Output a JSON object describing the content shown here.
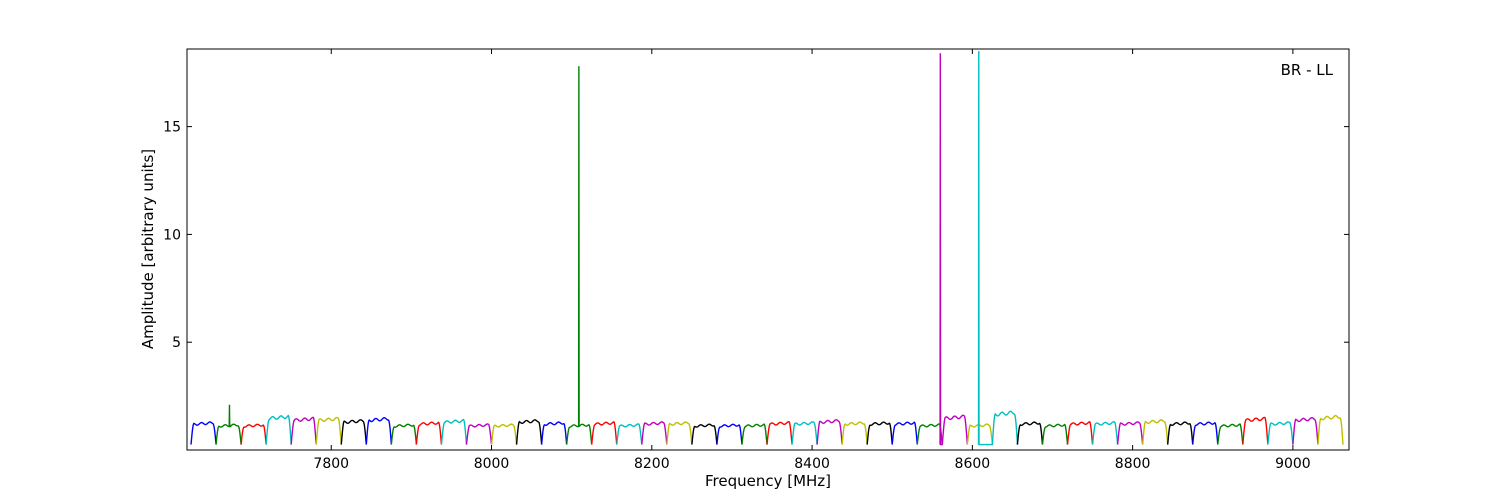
{
  "chart_data": {
    "type": "line",
    "title": "",
    "annotation": "BR - LL",
    "xlabel": "Frequency [MHz]",
    "ylabel": "Amplitude [arbitrary units]",
    "xlim": [
      7620,
      9070
    ],
    "ylim": [
      0,
      18.6
    ],
    "x_ticks": [
      7800,
      8000,
      8200,
      8400,
      8600,
      8800,
      9000
    ],
    "y_ticks": [
      5,
      10,
      15
    ],
    "grid": false,
    "legend": "none",
    "channel_width_mhz": 31.25,
    "channel_start_mhz": 7625,
    "channel_count": 46,
    "series": [
      {
        "color": "#0000ff",
        "start": 7625,
        "end": 7656.25,
        "peak": 1.3
      },
      {
        "color": "#008000",
        "start": 7656.25,
        "end": 7687.5,
        "peak": 1.2,
        "spike_x": 7673,
        "spike_y": 2.1
      },
      {
        "color": "#ff0000",
        "start": 7687.5,
        "end": 7718.75,
        "peak": 1.2
      },
      {
        "color": "#00bfbf",
        "start": 7718.75,
        "end": 7750,
        "peak": 1.6
      },
      {
        "color": "#bf00bf",
        "start": 7750,
        "end": 7781.25,
        "peak": 1.5
      },
      {
        "color": "#bfbf00",
        "start": 7781.25,
        "end": 7812.5,
        "peak": 1.5
      },
      {
        "color": "#000000",
        "start": 7812.5,
        "end": 7843.75,
        "peak": 1.4
      },
      {
        "color": "#0000ff",
        "start": 7843.75,
        "end": 7875,
        "peak": 1.5
      },
      {
        "color": "#008000",
        "start": 7875,
        "end": 7906.25,
        "peak": 1.2
      },
      {
        "color": "#ff0000",
        "start": 7906.25,
        "end": 7937.5,
        "peak": 1.3
      },
      {
        "color": "#00bfbf",
        "start": 7937.5,
        "end": 7968.75,
        "peak": 1.4
      },
      {
        "color": "#bf00bf",
        "start": 7968.75,
        "end": 8000,
        "peak": 1.2
      },
      {
        "color": "#bfbf00",
        "start": 8000,
        "end": 8031.25,
        "peak": 1.2
      },
      {
        "color": "#000000",
        "start": 8031.25,
        "end": 8062.5,
        "peak": 1.4
      },
      {
        "color": "#0000ff",
        "start": 8062.5,
        "end": 8093.75,
        "peak": 1.3
      },
      {
        "color": "#008000",
        "start": 8093.75,
        "end": 8125,
        "peak": 1.2,
        "spike_x": 8109,
        "spike_y": 17.8
      },
      {
        "color": "#ff0000",
        "start": 8125,
        "end": 8156.25,
        "peak": 1.3
      },
      {
        "color": "#00bfbf",
        "start": 8156.25,
        "end": 8187.5,
        "peak": 1.2
      },
      {
        "color": "#bf00bf",
        "start": 8187.5,
        "end": 8218.75,
        "peak": 1.3
      },
      {
        "color": "#bfbf00",
        "start": 8218.75,
        "end": 8250,
        "peak": 1.3
      },
      {
        "color": "#000000",
        "start": 8250,
        "end": 8281.25,
        "peak": 1.2
      },
      {
        "color": "#0000ff",
        "start": 8281.25,
        "end": 8312.5,
        "peak": 1.2
      },
      {
        "color": "#008000",
        "start": 8312.5,
        "end": 8343.75,
        "peak": 1.2
      },
      {
        "color": "#ff0000",
        "start": 8343.75,
        "end": 8375,
        "peak": 1.3
      },
      {
        "color": "#00bfbf",
        "start": 8375,
        "end": 8406.25,
        "peak": 1.3
      },
      {
        "color": "#bf00bf",
        "start": 8406.25,
        "end": 8437.5,
        "peak": 1.4
      },
      {
        "color": "#bfbf00",
        "start": 8437.5,
        "end": 8468.75,
        "peak": 1.3
      },
      {
        "color": "#000000",
        "start": 8468.75,
        "end": 8500,
        "peak": 1.3
      },
      {
        "color": "#0000ff",
        "start": 8500,
        "end": 8531.25,
        "peak": 1.3
      },
      {
        "color": "#008000",
        "start": 8531.25,
        "end": 8562.5,
        "peak": 1.2
      },
      {
        "color": "#bf00bf",
        "start": 8562.5,
        "end": 8593.75,
        "peak": 1.6,
        "spike_x": 8560,
        "spike_y": 18.4
      },
      {
        "color": "#bfbf00",
        "start": 8593.75,
        "end": 8625,
        "peak": 1.2
      },
      {
        "color": "#00bfbf",
        "start": 8625,
        "end": 8656.25,
        "peak": 1.8,
        "spike_x": 8608,
        "spike_y": 18.5
      },
      {
        "color": "#000000",
        "start": 8656.25,
        "end": 8687.5,
        "peak": 1.3
      },
      {
        "color": "#008000",
        "start": 8687.5,
        "end": 8718.75,
        "peak": 1.2
      },
      {
        "color": "#ff0000",
        "start": 8718.75,
        "end": 8750,
        "peak": 1.3
      },
      {
        "color": "#00bfbf",
        "start": 8750,
        "end": 8781.25,
        "peak": 1.3
      },
      {
        "color": "#bf00bf",
        "start": 8781.25,
        "end": 8812.5,
        "peak": 1.3
      },
      {
        "color": "#bfbf00",
        "start": 8812.5,
        "end": 8843.75,
        "peak": 1.4
      },
      {
        "color": "#000000",
        "start": 8843.75,
        "end": 8875,
        "peak": 1.3
      },
      {
        "color": "#0000ff",
        "start": 8875,
        "end": 8906.25,
        "peak": 1.3
      },
      {
        "color": "#008000",
        "start": 8906.25,
        "end": 8937.5,
        "peak": 1.2
      },
      {
        "color": "#ff0000",
        "start": 8937.5,
        "end": 8968.75,
        "peak": 1.5
      },
      {
        "color": "#00bfbf",
        "start": 8968.75,
        "end": 9000,
        "peak": 1.3
      },
      {
        "color": "#bf00bf",
        "start": 9000,
        "end": 9031.25,
        "peak": 1.5
      },
      {
        "color": "#bfbf00",
        "start": 9031.25,
        "end": 9062.5,
        "peak": 1.6
      }
    ]
  }
}
